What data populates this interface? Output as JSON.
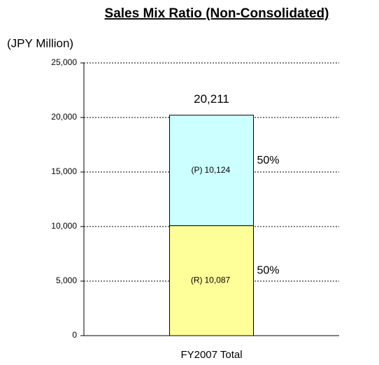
{
  "chart_data": {
    "type": "stacked_bar",
    "title": "Sales Mix Ratio (Non-Consolidated)",
    "ylabel": "(JPY Million)",
    "categories": [
      "FY2007 Total"
    ],
    "series": [
      {
        "name": "(R)",
        "color": "#ffff99",
        "values": [
          10087
        ],
        "value_labels": [
          "10,087"
        ],
        "percent_labels": [
          "50%"
        ]
      },
      {
        "name": "(P)",
        "color": "#ccffff",
        "values": [
          10124
        ],
        "value_labels": [
          "10,124"
        ],
        "percent_labels": [
          "50%"
        ]
      }
    ],
    "total_labels": [
      "20,211"
    ],
    "ylim": [
      0,
      25000
    ],
    "yticks": [
      0,
      {
        "value": 5000,
        "label": "5,000"
      },
      {
        "value": 10000,
        "label": "10,000"
      },
      {
        "value": 15000,
        "label": "15,000"
      },
      {
        "value": 20000,
        "label": "20,000"
      },
      {
        "value": 25000,
        "label": "25,000"
      }
    ],
    "grid": true
  }
}
